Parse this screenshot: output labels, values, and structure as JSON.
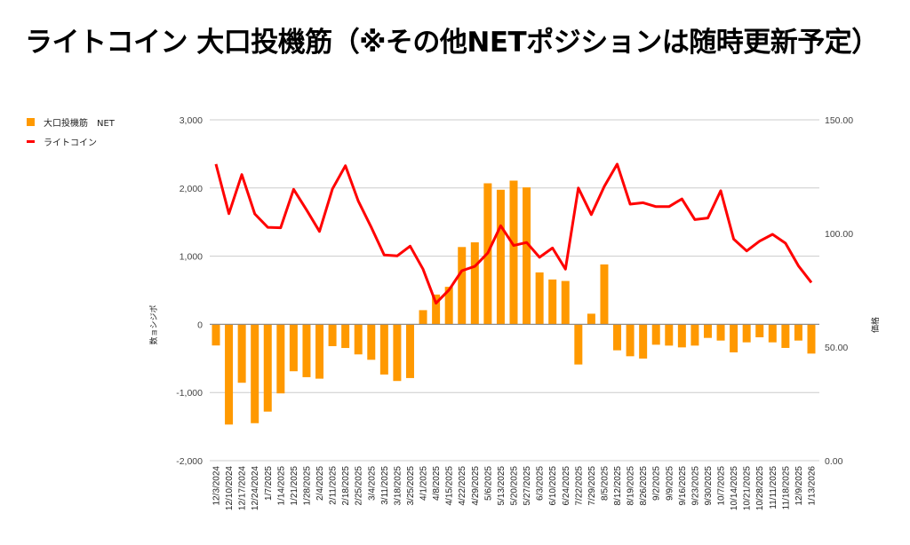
{
  "chart_data": {
    "type": "bar+line",
    "title": "ライトコイン 大口投機筋（※その他NETポジションは随時更新予定）",
    "categories": [
      "12/3/2024",
      "12/10/2024",
      "12/17/2024",
      "12/24/2024",
      "1/7/2025",
      "1/14/2025",
      "1/21/2025",
      "1/28/2025",
      "2/4/2025",
      "2/11/2025",
      "2/18/2025",
      "2/25/2025",
      "3/4/2025",
      "3/11/2025",
      "3/18/2025",
      "3/25/2025",
      "4/1/2025",
      "4/8/2025",
      "4/15/2025",
      "4/22/2025",
      "4/29/2025",
      "5/6/2025",
      "5/13/2025",
      "5/20/2025",
      "5/27/2025",
      "6/3/2025",
      "6/10/2025",
      "6/24/2025",
      "7/22/2025",
      "7/29/2025",
      "8/5/2025",
      "8/12/2025",
      "8/19/2025",
      "8/26/2025",
      "9/2/2025",
      "9/9/2025",
      "9/16/2025",
      "9/23/2025",
      "9/30/2025",
      "10/7/2025",
      "10/14/2025",
      "10/21/2025",
      "10/28/2025",
      "11/11/2025",
      "11/18/2025",
      "12/9/2025",
      "1/13/2026"
    ],
    "series": [
      {
        "name": "大口投機筋　NET",
        "type": "bar",
        "axis": "left",
        "color": "#ff9900",
        "values": [
          -310,
          -1470,
          -857,
          -1450,
          -1280,
          -1013,
          -688,
          -775,
          -797,
          -320,
          -347,
          -441,
          -520,
          -736,
          -831,
          -788,
          208,
          437,
          550,
          1134,
          1203,
          2069,
          1974,
          2108,
          2009,
          762,
          658,
          636,
          -589,
          156,
          879,
          -381,
          -468,
          -502,
          -299,
          -312,
          -338,
          -312,
          -199,
          -238,
          -411,
          -264,
          -190,
          -264,
          -346,
          -238,
          -429
        ]
      },
      {
        "name": "ライトコイン",
        "type": "line",
        "axis": "right",
        "color": "#ff0000",
        "values": [
          130.5,
          108.7,
          125.9,
          108.6,
          102.7,
          102.5,
          119.4,
          110.3,
          100.9,
          119.6,
          129.8,
          114.2,
          102.7,
          90.5,
          90.1,
          94.4,
          84.3,
          69.3,
          75.1,
          83.6,
          85.5,
          91.4,
          103.4,
          94.7,
          96.0,
          89.5,
          93.6,
          84.3,
          120.0,
          108.3,
          120.7,
          130.5,
          112.9,
          113.5,
          111.8,
          111.8,
          115.2,
          106.1,
          106.8,
          118.8,
          97.5,
          92.3,
          96.6,
          99.6,
          95.7,
          85.8,
          78.4
        ]
      }
    ],
    "ylabel": "数ョシジポ",
    "y2label": "価格",
    "ylim": [
      -2000,
      3000
    ],
    "y2lim": [
      0,
      150
    ],
    "yticks": [
      "3,000",
      "2,000",
      "1,000",
      "0",
      "-1,000",
      "-2,000"
    ],
    "y2ticks": [
      "150.00",
      "100.00",
      "50.00",
      "0.00"
    ],
    "grid": true,
    "legend": "top-left"
  }
}
